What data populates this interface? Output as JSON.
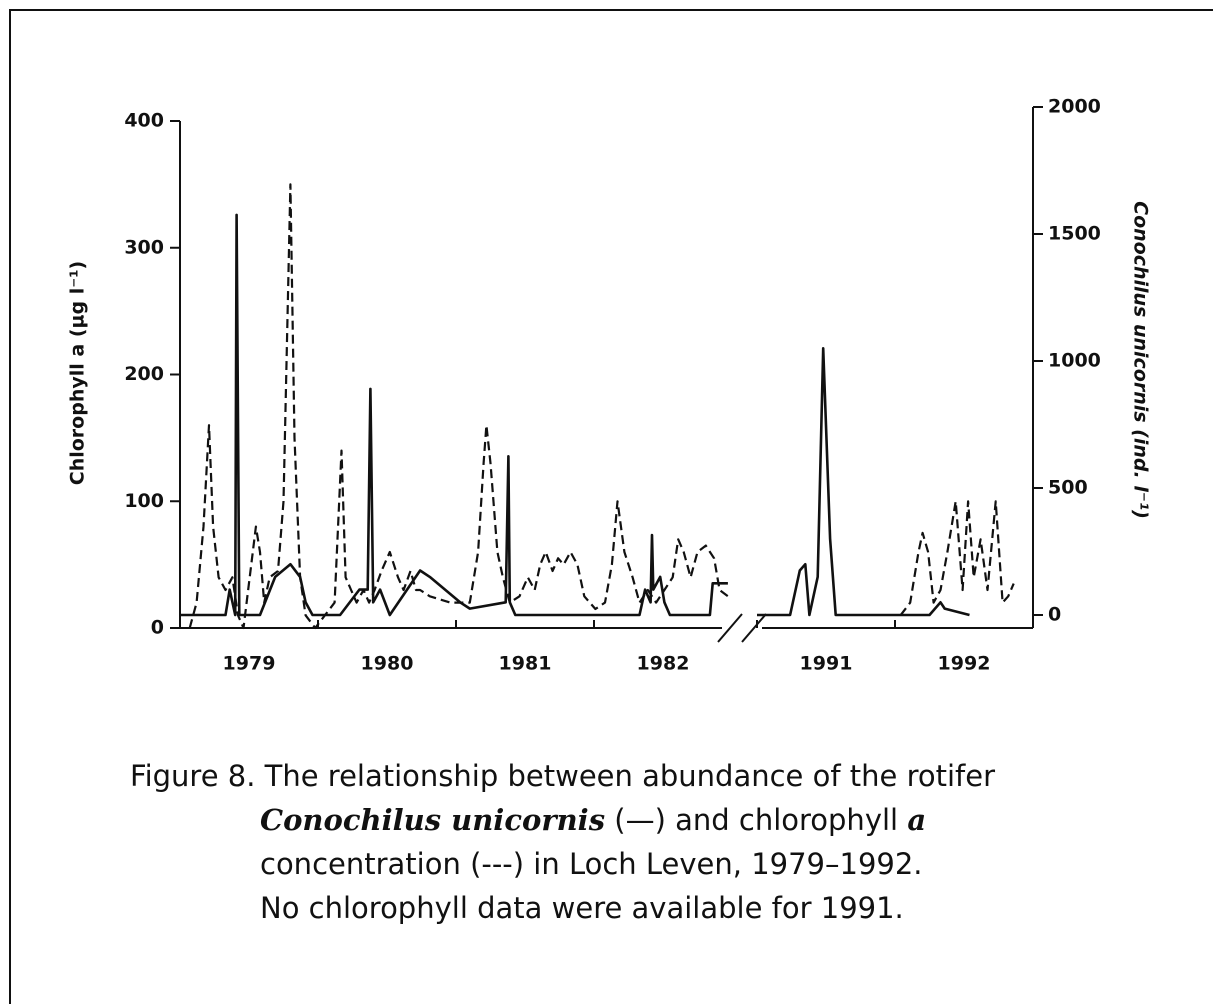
{
  "chart_data": {
    "type": "line",
    "ylabel": "Chlorophyll a (µg l⁻¹)",
    "y2label": "Conochilus unicornis (ind. l⁻¹)",
    "xlim": [
      1979,
      1993
    ],
    "xbreak": [
      1983,
      1991
    ],
    "xticks": [
      {
        "value": 1979.5,
        "label": "1979"
      },
      {
        "value": 1980.5,
        "label": "1980"
      },
      {
        "value": 1981.5,
        "label": "1981"
      },
      {
        "value": 1982.5,
        "label": "1982"
      },
      {
        "value": 1991.5,
        "label": "1991"
      },
      {
        "value": 1992.5,
        "label": "1992"
      }
    ],
    "xminorticks": [
      1979,
      1980,
      1981,
      1982,
      1991,
      1992,
      1993
    ],
    "ylim": [
      0,
      400
    ],
    "yticks": [
      0,
      100,
      200,
      300,
      400
    ],
    "y2lim": [
      0,
      2000
    ],
    "y2ticks": [
      0,
      500,
      1000,
      1500,
      2000
    ],
    "series": [
      {
        "name": "chlorophyll a",
        "color": "#111",
        "dash": true,
        "x": [
          1979.07,
          1979.12,
          1979.17,
          1979.21,
          1979.24,
          1979.28,
          1979.33,
          1979.38,
          1979.42,
          1979.46,
          1979.55,
          1979.58,
          1979.61,
          1979.65,
          1979.71,
          1979.75,
          1979.8,
          1979.83,
          1979.87,
          1979.91,
          1979.98,
          1980.12,
          1980.17,
          1980.2,
          1980.24,
          1980.28,
          1980.33,
          1980.37,
          1980.41,
          1980.46,
          1980.52,
          1980.58,
          1980.62,
          1980.67,
          1980.71,
          1980.74,
          1980.81,
          1980.96,
          1981.1,
          1981.16,
          1981.2,
          1981.22,
          1981.25,
          1981.3,
          1981.34,
          1981.39,
          1981.46,
          1981.52,
          1981.57,
          1981.61,
          1981.65,
          1981.7,
          1981.74,
          1981.78,
          1981.83,
          1981.88,
          1981.93,
          1982.01,
          1982.08,
          1982.13,
          1982.17,
          1982.22,
          1982.28,
          1982.33,
          1982.39,
          1982.45,
          1982.51,
          1982.57,
          1982.61,
          1982.65,
          1982.7,
          1982.75,
          1982.81,
          1982.87,
          1982.91,
          1982.97,
          null,
          1992.04,
          1992.11,
          1992.17,
          1992.2,
          1992.24,
          1992.28,
          1992.33,
          1992.38,
          1992.44,
          1992.49,
          1992.53,
          1992.57,
          1992.62,
          1992.67,
          1992.73,
          1992.78,
          1992.82,
          1992.86
        ],
        "values": [
          0,
          20,
          80,
          160,
          80,
          40,
          30,
          40,
          10,
          0,
          80,
          60,
          20,
          40,
          45,
          100,
          350,
          150,
          40,
          10,
          0,
          20,
          140,
          40,
          30,
          20,
          30,
          20,
          30,
          45,
          60,
          40,
          30,
          45,
          30,
          30,
          25,
          20,
          20,
          60,
          130,
          160,
          130,
          60,
          40,
          20,
          25,
          40,
          30,
          50,
          60,
          45,
          55,
          50,
          60,
          50,
          25,
          15,
          20,
          50,
          100,
          60,
          40,
          20,
          30,
          20,
          30,
          40,
          70,
          60,
          40,
          60,
          65,
          55,
          30,
          25,
          null,
          10,
          20,
          60,
          75,
          60,
          20,
          30,
          60,
          100,
          30,
          100,
          40,
          70,
          30,
          100,
          20,
          25,
          35
        ]
      },
      {
        "name": "Conochilus unicornis",
        "color": "#111",
        "dash": false,
        "axis": "y2",
        "x": [
          1979,
          1979.33,
          1979.36,
          1979.4,
          1979.41,
          1979.43,
          1979.58,
          1979.69,
          1979.8,
          1979.87,
          1979.91,
          1979.96,
          1980.16,
          1980.3,
          1980.36,
          1980.38,
          1980.4,
          1980.45,
          1980.52,
          1980.74,
          1980.81,
          1981.03,
          1981.1,
          1981.36,
          1981.38,
          1981.39,
          1981.43,
          1982.33,
          1982.37,
          1982.41,
          1982.42,
          1982.43,
          1982.48,
          1982.51,
          1982.55,
          1982.84,
          1982.86,
          1982.97,
          null,
          1991,
          1991.24,
          1991.31,
          1991.35,
          1991.38,
          1991.44,
          1991.48,
          1991.53,
          1991.57,
          1992.25,
          1992.33,
          1992.36,
          1992.54
        ],
        "values": [
          0,
          0,
          100,
          0,
          1575,
          0,
          0,
          150,
          200,
          150,
          50,
          0,
          0,
          100,
          100,
          890,
          50,
          100,
          0,
          175,
          150,
          50,
          25,
          50,
          625,
          50,
          0,
          0,
          100,
          50,
          315,
          100,
          150,
          50,
          0,
          0,
          125,
          125,
          null,
          0,
          0,
          175,
          200,
          0,
          150,
          1050,
          300,
          0,
          0,
          50,
          25,
          0
        ]
      }
    ],
    "caption": [
      [
        "Figure 8. The relationship between abundance of the rotifer"
      ],
      [
        "Conochilus unicornis",
        " (—) and chlorophyll ",
        "a"
      ],
      [
        "concentration (---) in Loch Leven, 1979–1992."
      ],
      [
        "No chlorophyll data were available for 1991."
      ]
    ]
  }
}
